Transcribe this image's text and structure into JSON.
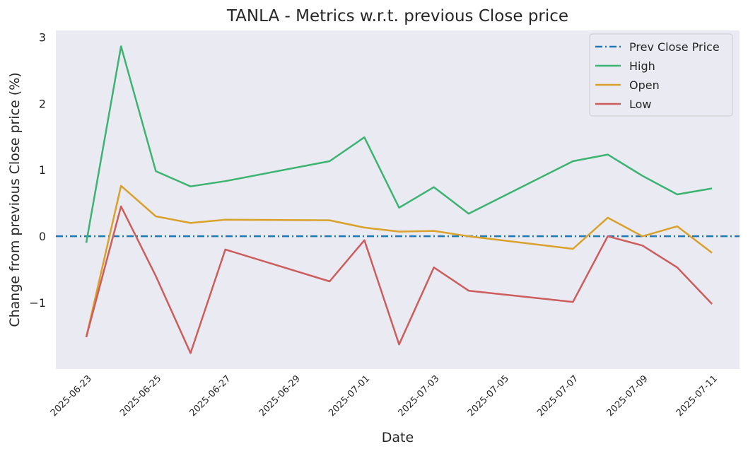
{
  "chart_data": {
    "type": "line",
    "title": "TANLA - Metrics w.r.t. previous Close price",
    "xlabel": "Date",
    "ylabel": "Change from previous Close price (%)",
    "x_ticks": [
      "2025-06-23",
      "2025-06-25",
      "2025-06-27",
      "2025-06-29",
      "2025-07-01",
      "2025-07-03",
      "2025-07-05",
      "2025-07-07",
      "2025-07-09",
      "2025-07-11"
    ],
    "y_ticks": [
      {
        "value": 3,
        "label": "3"
      },
      {
        "value": 2,
        "label": "2"
      },
      {
        "value": 1,
        "label": "1"
      },
      {
        "value": 0,
        "label": "0"
      },
      {
        "value": -1,
        "label": "−1"
      }
    ],
    "xlim": [
      "2025-06-22T03:00",
      "2025-07-11T19:00"
    ],
    "ylim": [
      -2.0,
      3.1
    ],
    "x": [
      "2025-06-23",
      "2025-06-24",
      "2025-06-25",
      "2025-06-26",
      "2025-06-27",
      "2025-06-30",
      "2025-07-01",
      "2025-07-02",
      "2025-07-03",
      "2025-07-04",
      "2025-07-07",
      "2025-07-08",
      "2025-07-09",
      "2025-07-10",
      "2025-07-11"
    ],
    "reference_line": {
      "name": "Prev Close Price",
      "value": 0,
      "color": "#1f77b4",
      "style": "dashdot"
    },
    "series": [
      {
        "name": "High",
        "color": "#3cb371",
        "values": [
          -0.1,
          2.86,
          0.98,
          0.75,
          0.83,
          1.13,
          1.49,
          0.43,
          0.74,
          0.34,
          1.13,
          1.23,
          0.91,
          0.63,
          0.72
        ]
      },
      {
        "name": "Open",
        "color": "#daa12a",
        "values": [
          -1.52,
          0.76,
          0.3,
          0.2,
          0.25,
          0.24,
          0.13,
          0.07,
          0.08,
          0.0,
          -0.19,
          0.28,
          0.0,
          0.15,
          -0.25
        ]
      },
      {
        "name": "Low",
        "color": "#cd5c5c",
        "values": [
          -1.52,
          0.45,
          -0.6,
          -1.76,
          -0.2,
          -0.68,
          -0.06,
          -1.63,
          -0.47,
          -0.82,
          -0.99,
          0.0,
          -0.14,
          -0.47,
          -1.02
        ]
      }
    ],
    "grid": false,
    "background": "#eaeaf2",
    "legend_position": "top-right"
  }
}
